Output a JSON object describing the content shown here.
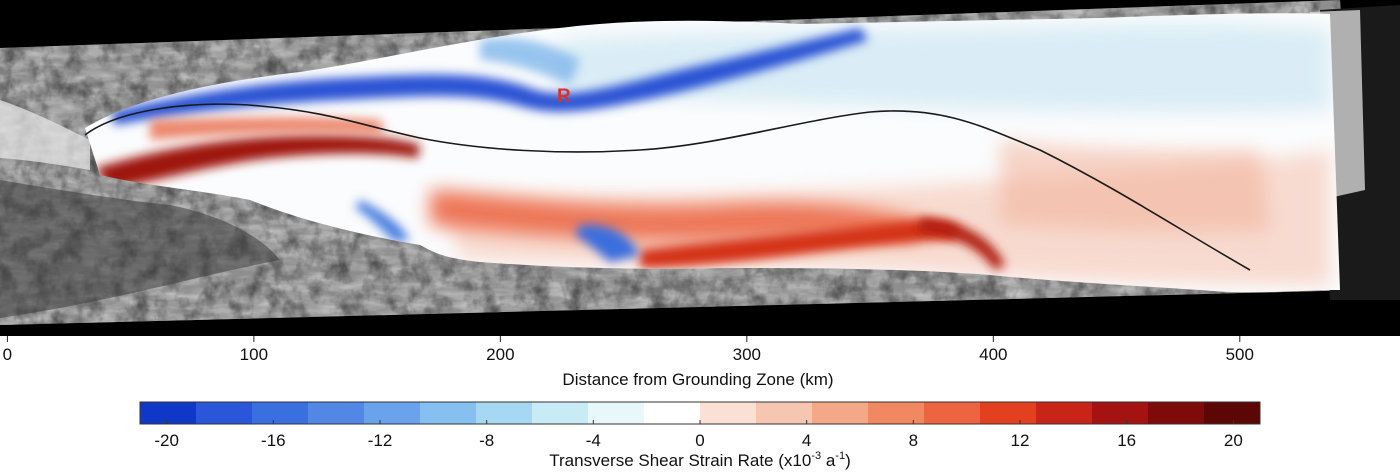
{
  "marker_label": "R",
  "distance_axis": {
    "title": "Distance from Grounding Zone (km)",
    "unit": "km",
    "range": [
      -3,
      565
    ],
    "ticks": [
      {
        "value": 0,
        "label": "0"
      },
      {
        "value": 100,
        "label": "100"
      },
      {
        "value": 200,
        "label": "200"
      },
      {
        "value": 300,
        "label": "300"
      },
      {
        "value": 400,
        "label": "400"
      },
      {
        "value": 500,
        "label": "500"
      }
    ]
  },
  "colorbar": {
    "title_prefix": "Transverse Shear Strain Rate (x10",
    "title_exp1": "-3",
    "title_mid": " a",
    "title_exp2": "-1",
    "title_suffix": ")",
    "range": [
      -21,
      21
    ],
    "tick_values": [
      -20,
      -16,
      -12,
      -8,
      -4,
      0,
      4,
      8,
      12,
      16,
      20
    ],
    "tick_labels": [
      "-20",
      "-16",
      "-12",
      "-8",
      "-4",
      "0",
      "4",
      "8",
      "12",
      "16",
      "20"
    ],
    "colors": [
      "#1038c8",
      "#2a56da",
      "#3a6fe0",
      "#5287e6",
      "#6aa3ec",
      "#86c0f0",
      "#a6d8f4",
      "#c8ecf6",
      "#e8f8fa",
      "#ffffff",
      "#fbe0d6",
      "#f7c6b0",
      "#f4a888",
      "#f08862",
      "#ec6440",
      "#e34020",
      "#c82418",
      "#a41212",
      "#7e0a0a",
      "#5c0606"
    ]
  },
  "flowline": {
    "label_hidden": true
  },
  "colors": {
    "background": "#000000",
    "page": "#ffffff",
    "positive": "#c0281a",
    "negative": "#1a44d0",
    "marker": "#d8322a"
  }
}
